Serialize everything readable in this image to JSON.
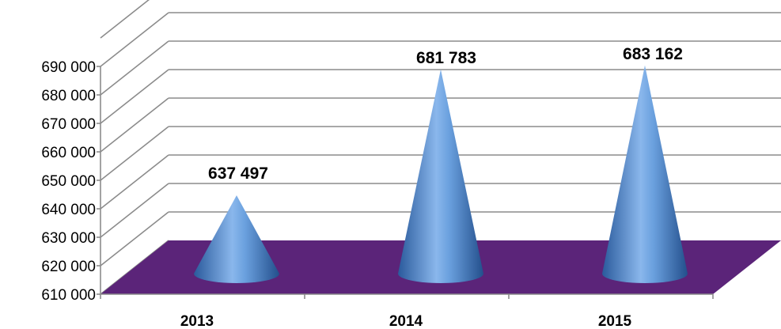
{
  "chart_data": {
    "type": "bar",
    "shape": "3d-cone",
    "title": "",
    "xlabel": "",
    "ylabel": "",
    "categories": [
      "2013",
      "2014",
      "2015"
    ],
    "values": [
      637497,
      681783,
      683162
    ],
    "value_labels": [
      "637 497",
      "681 783",
      "683 162"
    ],
    "ylim": [
      610000,
      690000
    ],
    "ytick_step": 10000,
    "ytick_labels": [
      "610 000",
      "620 000",
      "630 000",
      "640 000",
      "650 000",
      "660 000",
      "670 000",
      "680 000",
      "690 000"
    ],
    "grid": true,
    "legend": "none"
  },
  "colors": {
    "floor": "#5b2479",
    "cone_light": "#9cc4f0",
    "cone_mid": "#4d87cc",
    "cone_dark": "#22508f",
    "gridline": "#8c8c8c",
    "axis": "#8c8c8c"
  }
}
